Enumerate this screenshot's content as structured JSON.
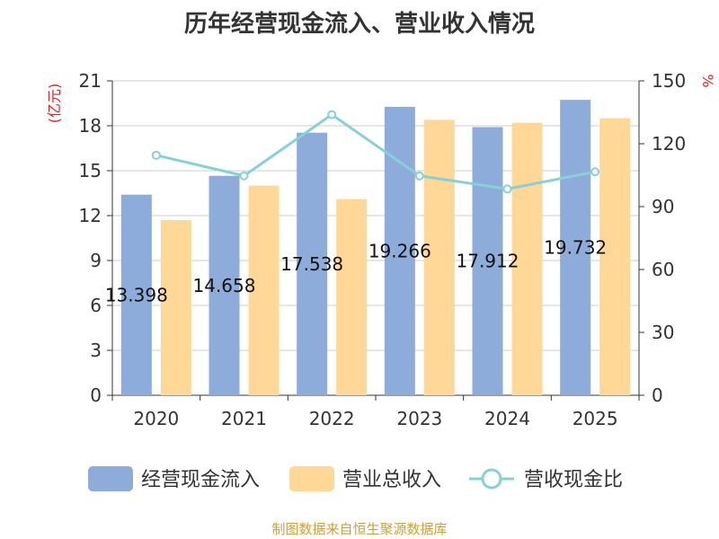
{
  "chart_data": {
    "type": "bar",
    "title": "历年经营现金流入、营业收入情况",
    "categories": [
      "2020",
      "2021",
      "2022",
      "2023",
      "2024",
      "2025"
    ],
    "series": [
      {
        "name": "经营现金流入",
        "kind": "bar",
        "axis": "left",
        "color": "#8eacd9",
        "values": [
          13.398,
          14.658,
          17.538,
          19.266,
          17.912,
          19.732
        ],
        "data_labels": [
          "13.398",
          "14.658",
          "17.538",
          "19.266",
          "17.912",
          "19.732"
        ]
      },
      {
        "name": "营业总收入",
        "kind": "bar",
        "axis": "left",
        "color": "#ffd898",
        "values": [
          11.7,
          14.0,
          13.1,
          18.4,
          18.2,
          18.5
        ]
      },
      {
        "name": "营收现金比",
        "kind": "line",
        "axis": "right",
        "color": "#86d1d5",
        "values": [
          114.5,
          104.7,
          133.9,
          104.7,
          98.4,
          106.6
        ]
      }
    ],
    "y_left": {
      "label": "(亿元)",
      "min": 0,
      "max": 21,
      "ticks": [
        0,
        3,
        6,
        9,
        12,
        15,
        18,
        21
      ]
    },
    "y_right": {
      "label": "%",
      "min": 0,
      "max": 150,
      "ticks": [
        0,
        30,
        60,
        90,
        120,
        150
      ]
    },
    "grid": true,
    "legend_position": "bottom"
  },
  "source": "制图数据来自恒生聚源数据库"
}
